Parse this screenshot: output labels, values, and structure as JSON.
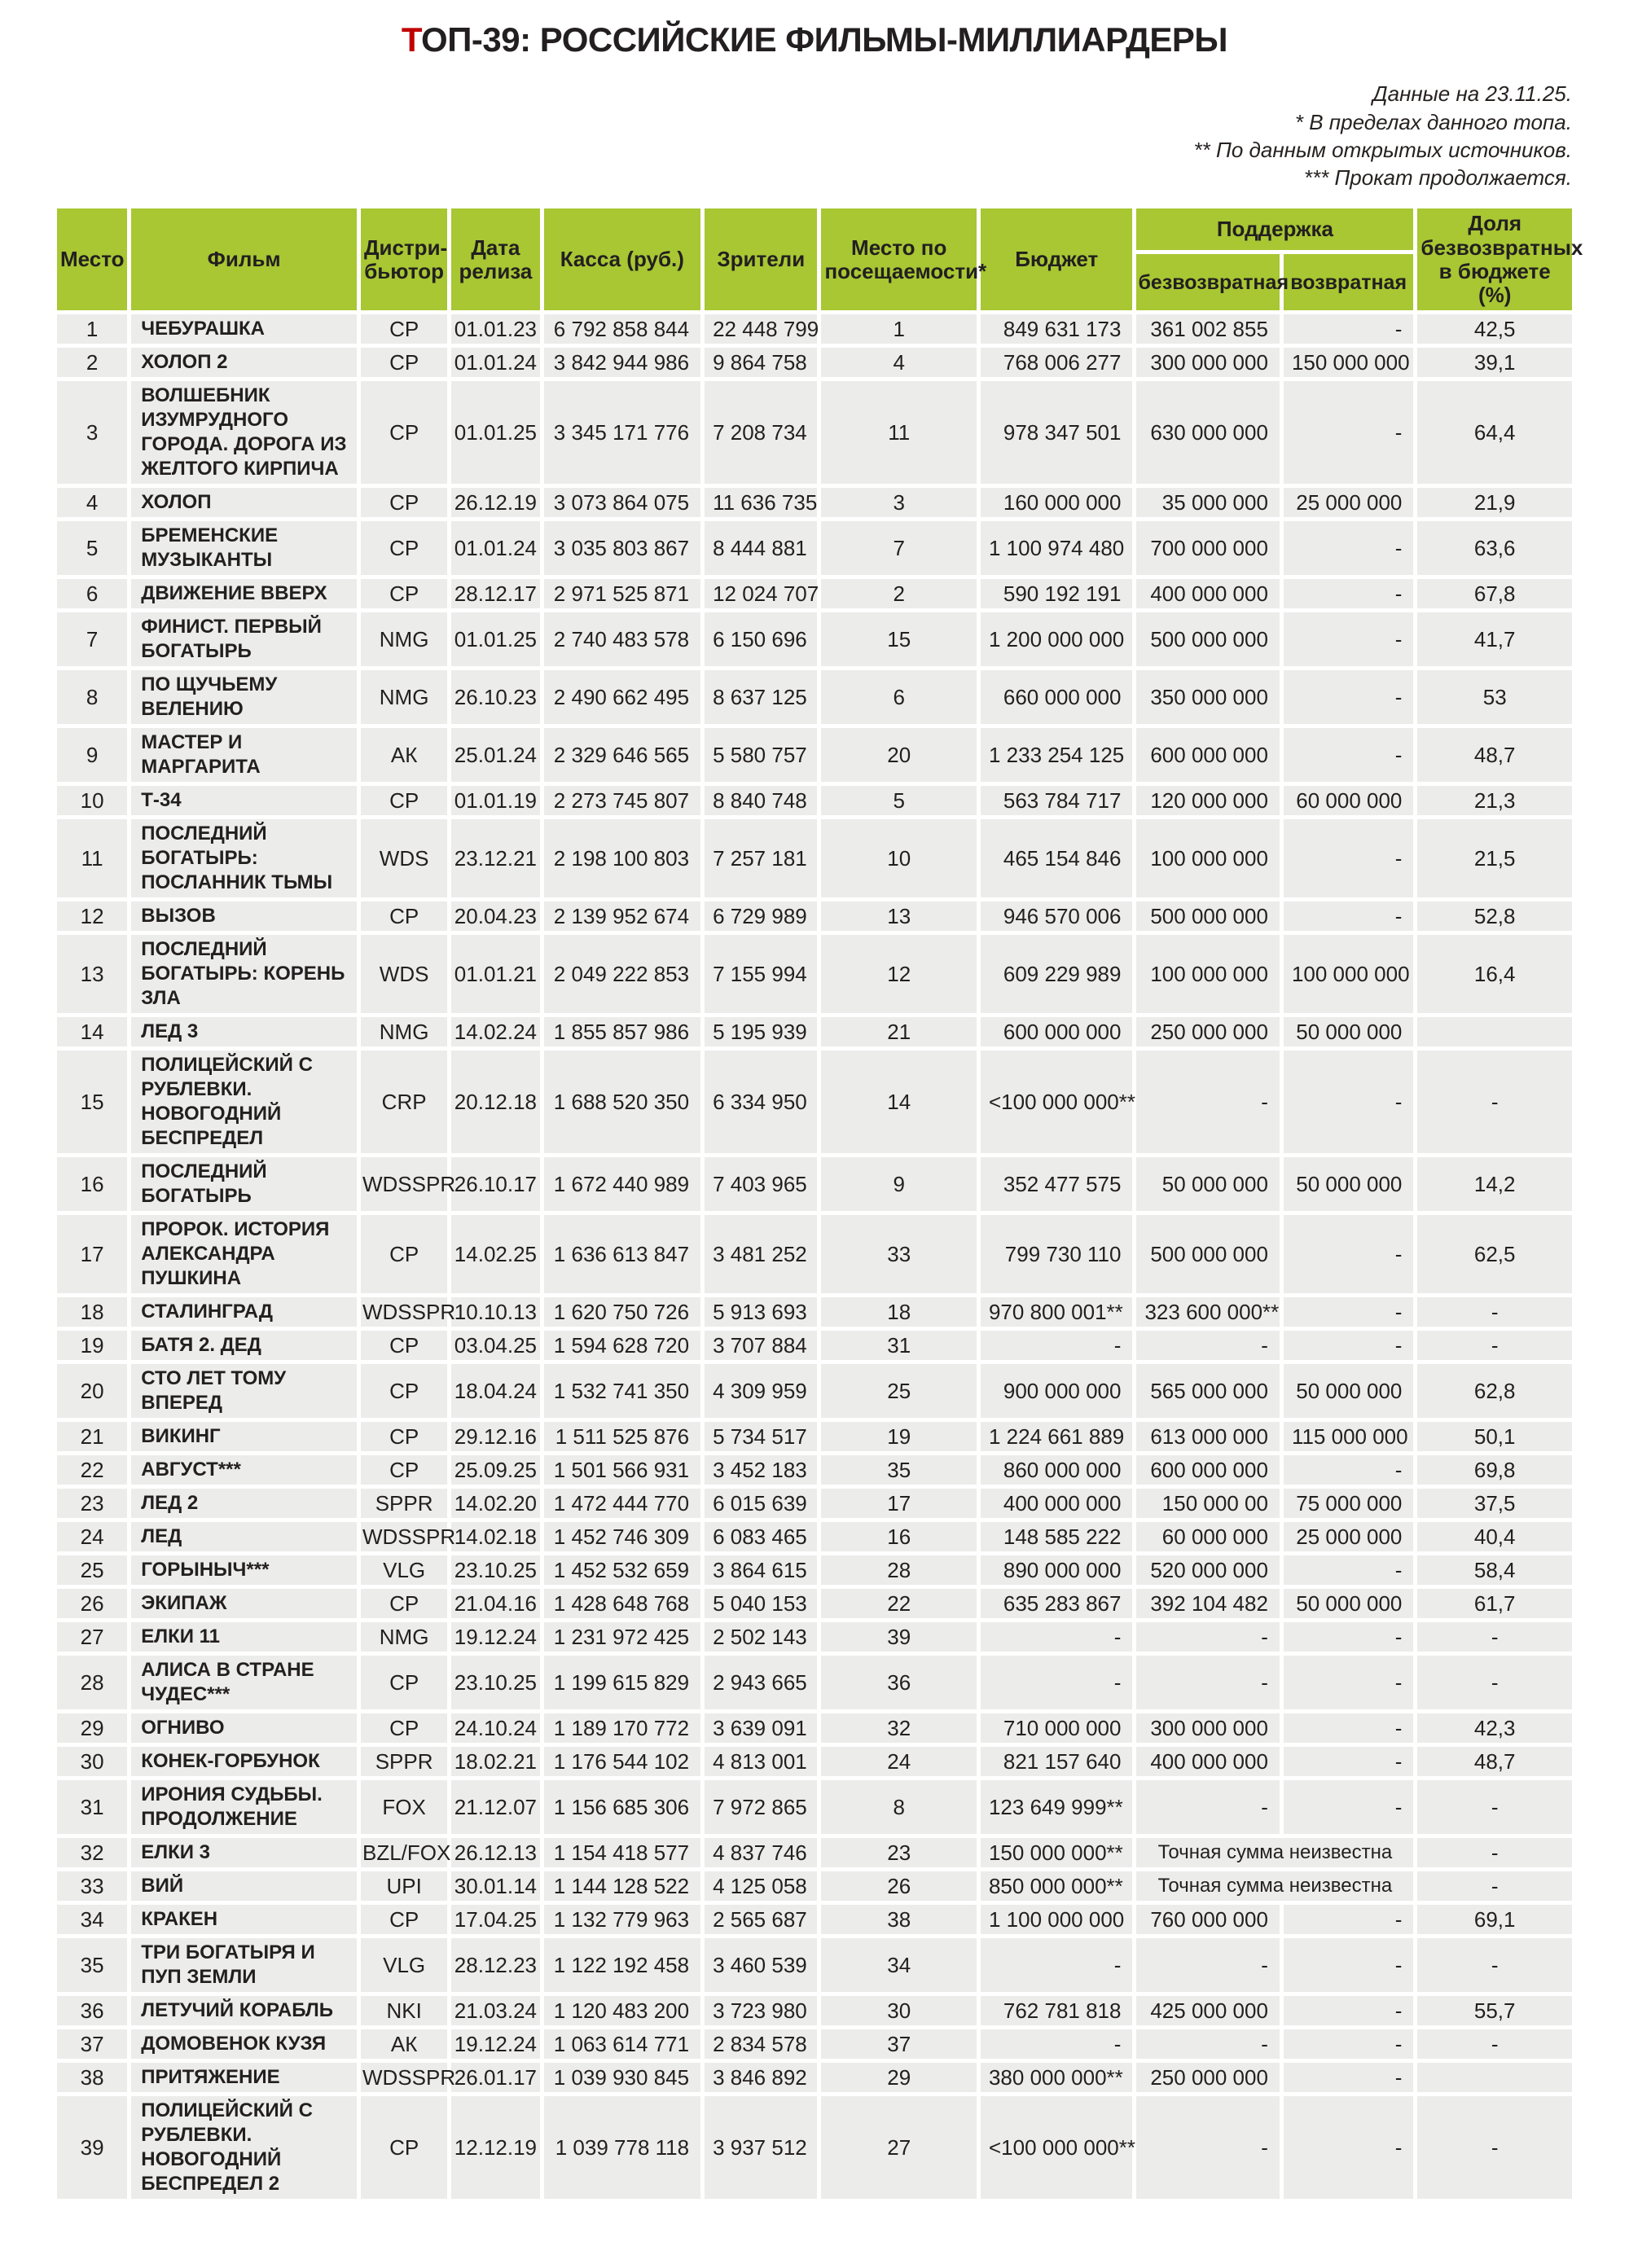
{
  "page": {
    "title_prefix": "Т",
    "title_rest": "ОП-39: РОССИЙСКИЕ ФИЛЬМЫ-МИЛЛИАРДЕРЫ",
    "notes": [
      "Данные на 23.11.25.",
      "* В пределах данного топа.",
      "** По данным открытых источников.",
      "*** Прокат продолжается."
    ]
  },
  "colors": {
    "header_green": "#a8c733",
    "row_gray": "#ececeb",
    "text_dark": "#231f20",
    "accent_red": "#c00000"
  },
  "chart_data": {
    "type": "table",
    "title": "ТОП-39: РОССИЙСКИЕ ФИЛЬМЫ-МИЛЛИАРДЕРЫ",
    "header": {
      "place": "Место",
      "film": "Фильм",
      "dist": "Дистри-бьютор",
      "date": "Дата релиза",
      "kassa": "Касса (руб.)",
      "viewers": "Зрители",
      "attend": "Место по посещаемости*",
      "budget": "Бюджет",
      "support": "Поддержка",
      "grant": "безвозвратная",
      "loan": "возвратная",
      "share": "Доля безвозвратных в бюджете (%)"
    },
    "rows": [
      {
        "place": "1",
        "film": "ЧЕБУРАШКА",
        "dist": "CP",
        "date": "01.01.23",
        "kassa": "6 792 858 844",
        "viewers": "22 448 799",
        "attend": "1",
        "budget": "849 631 173",
        "grant": "361 002 855",
        "loan": "-",
        "share": "42,5"
      },
      {
        "place": "2",
        "film": "ХОЛОП 2",
        "dist": "CP",
        "date": "01.01.24",
        "kassa": "3 842 944 986",
        "viewers": "9 864 758",
        "attend": "4",
        "budget": "768 006 277",
        "grant": "300 000 000",
        "loan": "150 000 000",
        "share": "39,1"
      },
      {
        "place": "3",
        "film": "ВОЛШЕБНИК ИЗУМРУДНОГО ГОРОДА. ДОРОГА ИЗ ЖЕЛТОГО КИРПИЧА",
        "dist": "CP",
        "date": "01.01.25",
        "kassa": "3 345 171 776",
        "viewers": "7 208 734",
        "attend": "11",
        "budget": "978 347 501",
        "grant": "630 000 000",
        "loan": "-",
        "share": "64,4"
      },
      {
        "place": "4",
        "film": "ХОЛОП",
        "dist": "CP",
        "date": "26.12.19",
        "kassa": "3 073 864 075",
        "viewers": "11 636 735",
        "attend": "3",
        "budget": "160 000 000",
        "grant": "35 000 000",
        "loan": "25 000 000",
        "share": "21,9"
      },
      {
        "place": "5",
        "film": "БРЕМЕНСКИЕ МУЗЫКАНТЫ",
        "dist": "CP",
        "date": "01.01.24",
        "kassa": "3 035 803 867",
        "viewers": "8 444 881",
        "attend": "7",
        "budget": "1 100 974 480",
        "grant": "700 000 000",
        "loan": "-",
        "share": "63,6"
      },
      {
        "place": "6",
        "film": "ДВИЖЕНИЕ ВВЕРХ",
        "dist": "CP",
        "date": "28.12.17",
        "kassa": "2 971 525 871",
        "viewers": "12 024 707",
        "attend": "2",
        "budget": "590 192 191",
        "grant": "400 000 000",
        "loan": "-",
        "share": "67,8"
      },
      {
        "place": "7",
        "film": "ФИНИСТ. ПЕРВЫЙ БОГАТЫРЬ",
        "dist": "NMG",
        "date": "01.01.25",
        "kassa": "2 740 483 578",
        "viewers": "6 150 696",
        "attend": "15",
        "budget": "1 200 000 000",
        "grant": "500 000 000",
        "loan": "-",
        "share": "41,7"
      },
      {
        "place": "8",
        "film": "ПО ЩУЧЬЕМУ ВЕЛЕНИЮ",
        "dist": "NMG",
        "date": "26.10.23",
        "kassa": "2 490 662 495",
        "viewers": "8 637 125",
        "attend": "6",
        "budget": "660 000 000",
        "grant": "350 000 000",
        "loan": "-",
        "share": "53"
      },
      {
        "place": "9",
        "film": "МАСТЕР И МАРГАРИТА",
        "dist": "АК",
        "date": "25.01.24",
        "kassa": "2 329 646 565",
        "viewers": "5 580 757",
        "attend": "20",
        "budget": "1 233 254 125",
        "grant": "600 000 000",
        "loan": "-",
        "share": "48,7"
      },
      {
        "place": "10",
        "film": "Т-34",
        "dist": "CP",
        "date": "01.01.19",
        "kassa": "2 273 745 807",
        "viewers": "8 840 748",
        "attend": "5",
        "budget": "563 784 717",
        "grant": "120 000 000",
        "loan": "60 000 000",
        "share": "21,3"
      },
      {
        "place": "11",
        "film": "ПОСЛЕДНИЙ БОГАТЫРЬ: ПОСЛАННИК ТЬМЫ",
        "dist": "WDS",
        "date": "23.12.21",
        "kassa": "2 198 100 803",
        "viewers": "7 257 181",
        "attend": "10",
        "budget": "465 154 846",
        "grant": "100 000 000",
        "loan": "-",
        "share": "21,5"
      },
      {
        "place": "12",
        "film": "ВЫЗОВ",
        "dist": "CP",
        "date": "20.04.23",
        "kassa": "2 139 952 674",
        "viewers": "6 729 989",
        "attend": "13",
        "budget": "946 570 006",
        "grant": "500 000 000",
        "loan": "-",
        "share": "52,8"
      },
      {
        "place": "13",
        "film": "ПОСЛЕДНИЙ БОГАТЫРЬ: КОРЕНЬ ЗЛА",
        "dist": "WDS",
        "date": "01.01.21",
        "kassa": "2 049 222 853",
        "viewers": "7 155 994",
        "attend": "12",
        "budget": "609 229 989",
        "grant": "100 000 000",
        "loan": "100 000 000",
        "share": "16,4"
      },
      {
        "place": "14",
        "film": "ЛЕД 3",
        "dist": "NMG",
        "date": "14.02.24",
        "kassa": "1 855 857 986",
        "viewers": "5 195 939",
        "attend": "21",
        "budget": "600 000 000",
        "grant": "250 000 000",
        "loan": "50 000 000",
        "share": ""
      },
      {
        "place": "15",
        "film": "ПОЛИЦЕЙСКИЙ С РУБЛЕВКИ. НОВОГОДНИЙ БЕСПРЕДЕЛ",
        "dist": "CRP",
        "date": "20.12.18",
        "kassa": "1 688 520 350",
        "viewers": "6 334 950",
        "attend": "14",
        "budget": "<100 000 000**",
        "grant": "-",
        "loan": "-",
        "share": "-"
      },
      {
        "place": "16",
        "film": "ПОСЛЕДНИЙ БОГАТЫРЬ",
        "dist": "WDSSPR",
        "date": "26.10.17",
        "kassa": "1 672 440 989",
        "viewers": "7 403 965",
        "attend": "9",
        "budget": "352 477 575",
        "grant": "50 000 000",
        "loan": "50 000 000",
        "share": "14,2"
      },
      {
        "place": "17",
        "film": "ПРОРОК. ИСТОРИЯ АЛЕКСАНДРА ПУШКИНА",
        "dist": "CP",
        "date": "14.02.25",
        "kassa": "1 636 613 847",
        "viewers": "3 481 252",
        "attend": "33",
        "budget": "799 730 110",
        "grant": "500 000 000",
        "loan": "-",
        "share": "62,5"
      },
      {
        "place": "18",
        "film": "СТАЛИНГРАД",
        "dist": "WDSSPR",
        "date": "10.10.13",
        "kassa": "1 620 750 726",
        "viewers": "5 913 693",
        "attend": "18",
        "budget": "970 800 001**",
        "grant": "323 600 000**",
        "loan": "-",
        "share": "-"
      },
      {
        "place": "19",
        "film": "БАТЯ 2. ДЕД",
        "dist": "CP",
        "date": "03.04.25",
        "kassa": "1 594 628 720",
        "viewers": "3 707 884",
        "attend": "31",
        "budget": "-",
        "grant": "-",
        "loan": "-",
        "share": "-"
      },
      {
        "place": "20",
        "film": "СТО ЛЕТ ТОМУ ВПЕРЕД",
        "dist": "CP",
        "date": "18.04.24",
        "kassa": "1 532 741 350",
        "viewers": "4 309 959",
        "attend": "25",
        "budget": "900 000 000",
        "grant": "565 000 000",
        "loan": "50 000 000",
        "share": "62,8"
      },
      {
        "place": "21",
        "film": "ВИКИНГ",
        "dist": "CP",
        "date": "29.12.16",
        "kassa": "1 511 525 876",
        "viewers": "5 734 517",
        "attend": "19",
        "budget": "1 224 661 889",
        "grant": "613 000 000",
        "loan": "115 000 000",
        "share": "50,1"
      },
      {
        "place": "22",
        "film": "АВГУСТ***",
        "dist": "CP",
        "date": "25.09.25",
        "kassa": "1 501 566 931",
        "viewers": "3 452 183",
        "attend": "35",
        "budget": "860 000 000",
        "grant": "600 000 000",
        "loan": "-",
        "share": "69,8"
      },
      {
        "place": "23",
        "film": "ЛЕД 2",
        "dist": "SPPR",
        "date": "14.02.20",
        "kassa": "1 472 444 770",
        "viewers": "6 015 639",
        "attend": "17",
        "budget": "400 000 000",
        "grant": "150 000 00",
        "loan": "75 000 000",
        "share": "37,5"
      },
      {
        "place": "24",
        "film": "ЛЕД",
        "dist": "WDSSPR",
        "date": "14.02.18",
        "kassa": "1 452 746 309",
        "viewers": "6 083 465",
        "attend": "16",
        "budget": "148 585 222",
        "grant": "60 000 000",
        "loan": "25 000 000",
        "share": "40,4"
      },
      {
        "place": "25",
        "film": "ГОРЫНЫЧ***",
        "dist": "VLG",
        "date": "23.10.25",
        "kassa": "1 452 532 659",
        "viewers": "3 864 615",
        "attend": "28",
        "budget": "890 000 000",
        "grant": "520 000 000",
        "loan": "-",
        "share": "58,4"
      },
      {
        "place": "26",
        "film": "ЭКИПАЖ",
        "dist": "CP",
        "date": "21.04.16",
        "kassa": "1 428 648 768",
        "viewers": "5 040 153",
        "attend": "22",
        "budget": "635 283 867",
        "grant": "392 104 482",
        "loan": "50 000 000",
        "share": "61,7"
      },
      {
        "place": "27",
        "film": "ЕЛКИ 11",
        "dist": "NMG",
        "date": "19.12.24",
        "kassa": "1 231 972 425",
        "viewers": "2 502 143",
        "attend": "39",
        "budget": "-",
        "grant": "-",
        "loan": "-",
        "share": "-"
      },
      {
        "place": "28",
        "film": "АЛИСА В СТРАНЕ ЧУДЕС***",
        "dist": "CP",
        "date": "23.10.25",
        "kassa": "1 199 615 829",
        "viewers": "2 943 665",
        "attend": "36",
        "budget": "-",
        "grant": "-",
        "loan": "-",
        "share": "-"
      },
      {
        "place": "29",
        "film": "ОГНИВО",
        "dist": "CP",
        "date": "24.10.24",
        "kassa": "1 189 170 772",
        "viewers": "3 639 091",
        "attend": "32",
        "budget": "710 000 000",
        "grant": "300 000 000",
        "loan": "-",
        "share": "42,3"
      },
      {
        "place": "30",
        "film": "КОНЕК-ГОРБУНОК",
        "dist": "SPPR",
        "date": "18.02.21",
        "kassa": "1 176 544 102",
        "viewers": "4 813 001",
        "attend": "24",
        "budget": "821 157 640",
        "grant": "400 000 000",
        "loan": "-",
        "share": "48,7"
      },
      {
        "place": "31",
        "film": "ИРОНИЯ СУДЬБЫ. ПРОДОЛЖЕНИЕ",
        "dist": "FOX",
        "date": "21.12.07",
        "kassa": "1 156 685 306",
        "viewers": "7 972 865",
        "attend": "8",
        "budget": "123 649 999**",
        "grant": "-",
        "loan": "-",
        "share": "-"
      },
      {
        "place": "32",
        "film": "ЕЛКИ 3",
        "dist": "BZL/FOX",
        "date": "26.12.13",
        "kassa": "1 154 418 577",
        "viewers": "4 837 746",
        "attend": "23",
        "budget": "150 000 000**",
        "support_note": "Точная сумма неизвестна",
        "share": "-"
      },
      {
        "place": "33",
        "film": "ВИЙ",
        "dist": "UPI",
        "date": "30.01.14",
        "kassa": "1 144 128 522",
        "viewers": "4 125 058",
        "attend": "26",
        "budget": "850 000 000**",
        "support_note": "Точная сумма неизвестна",
        "share": "-"
      },
      {
        "place": "34",
        "film": "КРАКЕН",
        "dist": "CP",
        "date": "17.04.25",
        "kassa": "1 132 779 963",
        "viewers": "2 565 687",
        "attend": "38",
        "budget": "1 100 000 000",
        "grant": "760 000 000",
        "loan": "-",
        "share": "69,1"
      },
      {
        "place": "35",
        "film": "ТРИ БОГАТЫРЯ И ПУП ЗЕМЛИ",
        "dist": "VLG",
        "date": "28.12.23",
        "kassa": "1 122 192 458",
        "viewers": "3 460 539",
        "attend": "34",
        "budget": "-",
        "grant": "-",
        "loan": "-",
        "share": "-"
      },
      {
        "place": "36",
        "film": "ЛЕТУЧИЙ КОРАБЛЬ",
        "dist": "NKI",
        "date": "21.03.24",
        "kassa": "1 120 483 200",
        "viewers": "3 723 980",
        "attend": "30",
        "budget": "762 781 818",
        "grant": "425 000 000",
        "loan": "-",
        "share": "55,7"
      },
      {
        "place": "37",
        "film": "ДОМОВЕНОК КУЗЯ",
        "dist": "АК",
        "date": "19.12.24",
        "kassa": "1 063 614 771",
        "viewers": "2 834 578",
        "attend": "37",
        "budget": "-",
        "grant": "-",
        "loan": "-",
        "share": "-"
      },
      {
        "place": "38",
        "film": "ПРИТЯЖЕНИЕ",
        "dist": "WDSSPR",
        "date": "26.01.17",
        "kassa": "1 039 930 845",
        "viewers": "3 846 892",
        "attend": "29",
        "budget": "380 000 000**",
        "grant": "250 000 000",
        "loan": "-",
        "share": ""
      },
      {
        "place": "39",
        "film": "ПОЛИЦЕЙСКИЙ С РУБЛЕВКИ. НОВОГОДНИЙ БЕСПРЕДЕЛ 2",
        "dist": "CP",
        "date": "12.12.19",
        "kassa": "1 039 778 118",
        "viewers": "3 937 512",
        "attend": "27",
        "budget": "<100 000 000**",
        "grant": "-",
        "loan": "-",
        "share": "-"
      }
    ]
  }
}
